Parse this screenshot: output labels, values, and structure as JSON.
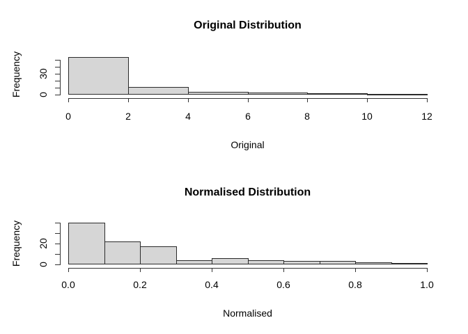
{
  "colors": {
    "background": "#ffffff",
    "bar_fill": "#d6d6d6",
    "bar_border": "#2a2a2a",
    "axis_line": "#333333",
    "text": "#000000"
  },
  "chart_data": [
    {
      "type": "bar",
      "subtype": "histogram",
      "title": "Original Distribution",
      "xlabel": "Original",
      "ylabel": "Frequency",
      "bin_edges": [
        0,
        2,
        4,
        6,
        8,
        10,
        12
      ],
      "values": [
        54,
        11,
        4,
        3,
        2,
        1
      ],
      "xlim": [
        0,
        12
      ],
      "ylim": [
        0,
        50
      ],
      "x_ticks": [
        {
          "value": 0,
          "label": "0"
        },
        {
          "value": 2,
          "label": "2"
        },
        {
          "value": 4,
          "label": "4"
        },
        {
          "value": 6,
          "label": "6"
        },
        {
          "value": 8,
          "label": "8"
        },
        {
          "value": 10,
          "label": "10"
        },
        {
          "value": 12,
          "label": "12"
        }
      ],
      "y_ticks": [
        0,
        10,
        20,
        30,
        40,
        50
      ],
      "y_labeled_ticks": [
        {
          "value": 0,
          "label": "0"
        },
        {
          "value": 30,
          "label": "30"
        }
      ],
      "grid": false,
      "legend": false
    },
    {
      "type": "bar",
      "subtype": "histogram",
      "title": "Normalised Distribution",
      "xlabel": "Normalised",
      "ylabel": "Frequency",
      "bin_edges": [
        0,
        0.1,
        0.2,
        0.3,
        0.4,
        0.5,
        0.6,
        0.7,
        0.8,
        0.9,
        1.0
      ],
      "values": [
        40,
        22,
        17,
        4,
        6,
        4,
        3,
        3,
        2,
        1
      ],
      "xlim": [
        0,
        1
      ],
      "ylim": [
        0,
        40
      ],
      "x_ticks": [
        {
          "value": 0.0,
          "label": "0.0"
        },
        {
          "value": 0.2,
          "label": "0.2"
        },
        {
          "value": 0.4,
          "label": "0.4"
        },
        {
          "value": 0.6,
          "label": "0.6"
        },
        {
          "value": 0.8,
          "label": "0.8"
        },
        {
          "value": 1.0,
          "label": "1.0"
        }
      ],
      "y_ticks": [
        0,
        10,
        20,
        30,
        40
      ],
      "y_labeled_ticks": [
        {
          "value": 0,
          "label": "0"
        },
        {
          "value": 20,
          "label": "20"
        }
      ],
      "grid": false,
      "legend": false
    }
  ]
}
